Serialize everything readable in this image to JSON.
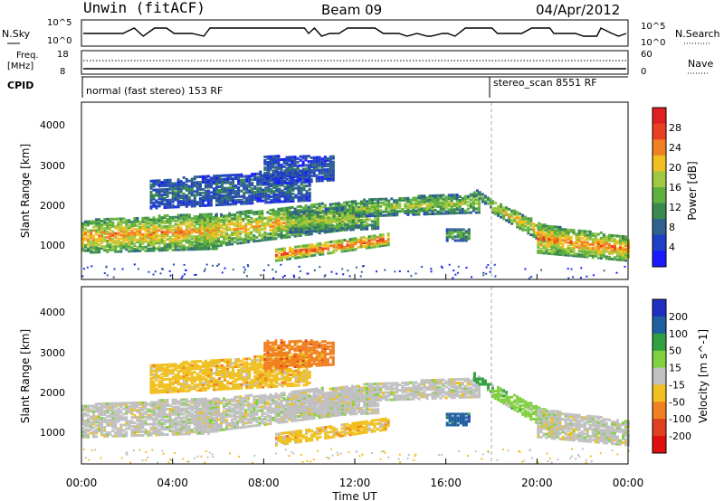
{
  "header": {
    "station": "Unwin (fitACF)",
    "beam": "Beam 09",
    "date": "04/Apr/2012"
  },
  "strip_panel": {
    "left_label": "N.Sky",
    "left_ticks": [
      "10^5",
      "10^0"
    ],
    "right_label": "N.Search",
    "right_ticks": [
      "10^5",
      "10^0"
    ]
  },
  "freq_panel": {
    "left_label_line1": "Freq.",
    "left_label_line2": "[MHz]",
    "left_ticks": [
      "18",
      "8"
    ],
    "right_label": "Nave",
    "right_ticks": [
      "60",
      "0"
    ]
  },
  "cpid": {
    "label": "CPID",
    "program1": "normal (fast stereo) 153 RF",
    "program2": "stereo_scan 8551 RF"
  },
  "chart_data": [
    {
      "type": "heatmap",
      "quantity": "Power",
      "xlabel": "",
      "ylabel": "Slant Range [km]",
      "x_range_hours": [
        0,
        24
      ],
      "y_ticks": [
        "1000",
        "2000",
        "3000",
        "4000"
      ],
      "ylim": [
        200,
        4600
      ],
      "colorbar_label": "Power [dB]",
      "colorbar_ticks": [
        "4",
        "8",
        "12",
        "16",
        "20",
        "24",
        "28"
      ],
      "colorbar_colors": [
        "#1a1aff",
        "#2040c8",
        "#306090",
        "#3a8a50",
        "#60b040",
        "#a0c840",
        "#f0c020",
        "#f08020",
        "#e84020",
        "#e02020"
      ]
    },
    {
      "type": "heatmap",
      "quantity": "Velocity",
      "xlabel": "Time UT",
      "ylabel": "Slant Range [km]",
      "x_range_hours": [
        0,
        24
      ],
      "x_ticks": [
        "00:00",
        "04:00",
        "08:00",
        "12:00",
        "16:00",
        "20:00",
        "00:00"
      ],
      "y_ticks": [
        "1000",
        "2000",
        "3000",
        "4000"
      ],
      "ylim": [
        200,
        4600
      ],
      "colorbar_label": "Velocity [m s^-1]",
      "colorbar_ticks": [
        "200",
        "100",
        "50",
        "15",
        "-15",
        "-50",
        "-100",
        "-200"
      ],
      "colorbar_colors": [
        "#2030c0",
        "#2060a0",
        "#30a040",
        "#80d040",
        "#c0c0c0",
        "#f0c020",
        "#f08020",
        "#e04020",
        "#e01010"
      ]
    }
  ]
}
